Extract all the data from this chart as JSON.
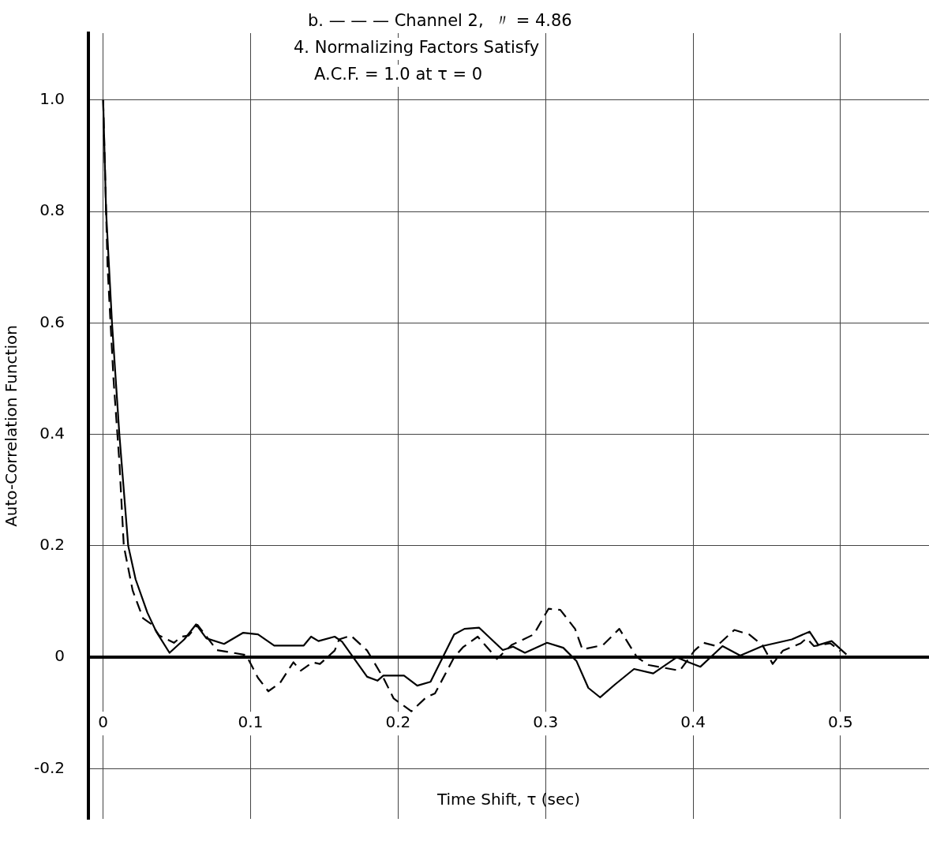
{
  "chart_data": {
    "type": "line",
    "xlabel": "Time Shift, τ (sec)",
    "ylabel": "Auto-Correlation Function",
    "annotations": [
      "b. — — — Channel 2,  〃 = 4.86",
      "4. Normalizing Factors Satisfy",
      "A.C.F. = 1.0 at τ = 0"
    ],
    "xlim": [
      -0.01,
      0.56
    ],
    "ylim": [
      -0.29,
      1.12
    ],
    "xticks": [
      0,
      0.1,
      0.2,
      0.3,
      0.4,
      0.5
    ],
    "yticks": [
      -0.2,
      0,
      0.2,
      0.4,
      0.6,
      0.8,
      {
        "value": 1,
        "label": "1.0"
      }
    ],
    "grid": true,
    "marker": "none",
    "series": [
      {
        "color": "#000000",
        "line_style": "solid",
        "x": [
          0,
          0.002,
          0.006,
          0.011,
          0.017,
          0.022,
          0.03,
          0.036,
          0.045,
          0.055,
          0.063,
          0.07,
          0.082,
          0.095,
          0.105,
          0.116,
          0.136,
          0.141,
          0.146,
          0.157,
          0.162,
          0.179,
          0.186,
          0.19,
          0.204,
          0.213,
          0.222,
          0.238,
          0.245,
          0.255,
          0.271,
          0.278,
          0.286,
          0.301,
          0.312,
          0.321,
          0.329,
          0.337,
          0.347,
          0.36,
          0.373,
          0.389,
          0.395,
          0.405,
          0.42,
          0.432,
          0.447,
          0.467,
          0.479,
          0.485,
          0.494,
          0.504
        ],
        "values": [
          1.0,
          0.8,
          0.6,
          0.4,
          0.2,
          0.14,
          0.08,
          0.046,
          0.008,
          0.032,
          0.059,
          0.034,
          0.024,
          0.044,
          0.041,
          0.021,
          0.021,
          0.037,
          0.029,
          0.037,
          0.028,
          -0.035,
          -0.042,
          -0.033,
          -0.033,
          -0.051,
          -0.044,
          0.041,
          0.051,
          0.053,
          0.013,
          0.019,
          0.008,
          0.026,
          0.017,
          -0.007,
          -0.055,
          -0.072,
          -0.049,
          -0.021,
          -0.029,
          0.0,
          -0.007,
          -0.017,
          0.02,
          0.003,
          0.02,
          0.032,
          0.046,
          0.022,
          0.029,
          0.005
        ]
      },
      {
        "color": "#000000",
        "line_style": "dashed",
        "x": [
          0,
          0.003,
          0.007,
          0.011,
          0.014,
          0.02,
          0.027,
          0.033,
          0.038,
          0.048,
          0.053,
          0.058,
          0.064,
          0.071,
          0.077,
          0.097,
          0.105,
          0.112,
          0.12,
          0.129,
          0.134,
          0.142,
          0.147,
          0.157,
          0.16,
          0.168,
          0.179,
          0.19,
          0.197,
          0.209,
          0.219,
          0.225,
          0.238,
          0.244,
          0.254,
          0.262,
          0.267,
          0.277,
          0.292,
          0.302,
          0.31,
          0.32,
          0.325,
          0.339,
          0.35,
          0.362,
          0.37,
          0.391,
          0.401,
          0.407,
          0.416,
          0.428,
          0.438,
          0.447,
          0.454,
          0.461,
          0.473,
          0.477,
          0.482,
          0.493,
          0.5
        ],
        "values": [
          1.0,
          0.7,
          0.5,
          0.35,
          0.2,
          0.12,
          0.07,
          0.059,
          0.039,
          0.026,
          0.037,
          0.039,
          0.058,
          0.034,
          0.013,
          0.004,
          -0.037,
          -0.061,
          -0.046,
          -0.009,
          -0.024,
          -0.009,
          -0.012,
          0.012,
          0.032,
          0.039,
          0.012,
          -0.037,
          -0.074,
          -0.097,
          -0.072,
          -0.065,
          0.0,
          0.018,
          0.037,
          0.013,
          -0.003,
          0.022,
          0.041,
          0.087,
          0.085,
          0.051,
          0.014,
          0.022,
          0.051,
          0.0,
          -0.014,
          -0.024,
          0.012,
          0.026,
          0.02,
          0.049,
          0.041,
          0.022,
          -0.012,
          0.012,
          0.025,
          0.034,
          0.02,
          0.025,
          0.011
        ]
      }
    ]
  }
}
